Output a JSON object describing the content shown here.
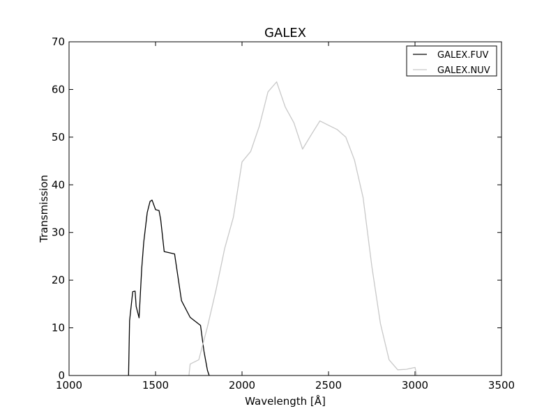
{
  "chart_data": {
    "type": "line",
    "title": "GALEX",
    "xlabel": "Wavelength [Å]",
    "ylabel": "Transmission",
    "xlim": [
      1000,
      3500
    ],
    "ylim": [
      0,
      70
    ],
    "xticks": [
      1000,
      1500,
      2000,
      2500,
      3000,
      3500
    ],
    "yticks": [
      0,
      10,
      20,
      30,
      40,
      50,
      60,
      70
    ],
    "grid": false,
    "legend_position": "top-right",
    "series": [
      {
        "name": "GALEX.FUV",
        "color": "#000000",
        "x": [
          1344,
          1350,
          1368,
          1382,
          1388,
          1405,
          1420,
          1432,
          1452,
          1468,
          1480,
          1500,
          1520,
          1530,
          1550,
          1610,
          1650,
          1700,
          1760,
          1780,
          1800,
          1810
        ],
        "y": [
          0,
          11.5,
          17.6,
          17.7,
          14.5,
          12.1,
          22.5,
          28,
          34.2,
          36.5,
          36.8,
          34.8,
          34.6,
          32.7,
          26,
          25.5,
          15.7,
          12.2,
          10.5,
          5.1,
          1.1,
          0
        ]
      },
      {
        "name": "GALEX.NUV",
        "color": "#c8c8c8",
        "x": [
          1693,
          1700,
          1750,
          1800,
          1850,
          1900,
          1950,
          2000,
          2050,
          2100,
          2150,
          2200,
          2250,
          2300,
          2350,
          2400,
          2450,
          2500,
          2550,
          2600,
          2650,
          2700,
          2750,
          2800,
          2850,
          2900,
          2950,
          3000,
          3010
        ],
        "y": [
          0,
          2.4,
          3.3,
          10.2,
          18,
          26.7,
          33.2,
          44.8,
          47,
          52.3,
          59.5,
          61.6,
          56.3,
          53,
          47.5,
          50.5,
          53.4,
          52.5,
          51.6,
          50,
          45.2,
          37.3,
          23,
          10.9,
          3.3,
          1.2,
          1.3,
          1.7,
          0
        ]
      }
    ]
  }
}
